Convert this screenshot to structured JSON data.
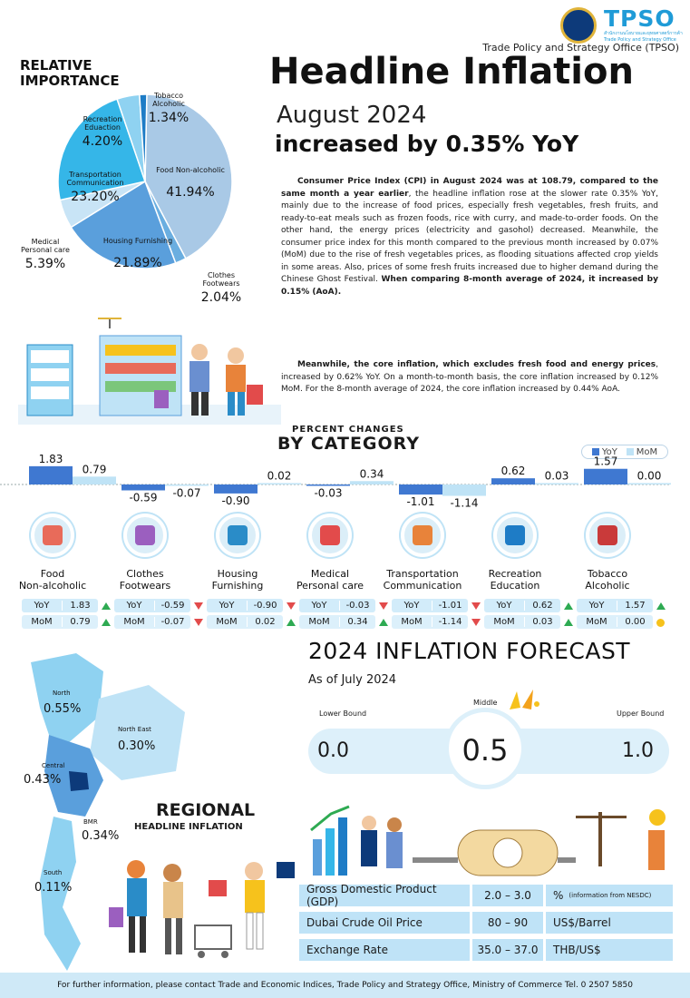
{
  "header": {
    "org": "Trade Policy and Strategy Office (TPSO)",
    "logo_text": "TPSO",
    "logo_sub": "สำนักงานนโยบายและยุทธศาสตร์การค้า Trade Policy and Strategy Office",
    "title": "Headline Inflation",
    "period": "August 2024",
    "subtitle": "increased by 0.35% YoY"
  },
  "summary": {
    "p1_bold": "Consumer Price Index (CPI) in August 2024 was at 108.79, compared to the same month a year earlier",
    "p1_text": ", the headline inflation rose at the slower rate 0.35% YoY, mainly due to the increase of food prices, especially fresh vegetables, fresh fruits, and ready-to-eat meals such as frozen foods, rice with curry, and made-to-order foods. On the other hand, the energy prices (electricity and gasohol) decreased. Meanwhile, the consumer price index for this month compared to the previous month increased by 0.07% (MoM) due to the rise of fresh vegetables prices, as flooding situations affected crop yields in some areas. Also, prices of some fresh fruits increased due to higher demand during the Chinese Ghost Festival. ",
    "p1_bold2": "When comparing 8-month average of 2024, it increased by 0.15% (AoA).",
    "p2_bold": "Meanwhile, the core inflation, which excludes fresh food and energy prices",
    "p2_text": ", increased by 0.62% YoY. On a month-to-month basis, the core inflation increased by 0.12% MoM.    For the 8-month average of 2024, the core inflation increased by 0.44% AoA."
  },
  "chart_data": [
    {
      "type": "pie",
      "title": "RELATIVE IMPORTANCE",
      "slices": [
        {
          "label": "Food Non-alcoholic",
          "value": 41.94,
          "display": "41.94%",
          "color": "#a9c9e6"
        },
        {
          "label": "Clothes Footwears",
          "value": 2.04,
          "display": "2.04%",
          "color": "#6aaee0"
        },
        {
          "label": "Housing Furnishing",
          "value": 21.89,
          "display": "21.89%",
          "color": "#5a9fdc"
        },
        {
          "label": "Medical Personal care",
          "value": 5.39,
          "display": "5.39%",
          "color": "#c8e4f6"
        },
        {
          "label": "Transportation Communication",
          "value": 23.2,
          "display": "23.20%",
          "color": "#35b6e8"
        },
        {
          "label": "Recreation Eduaction",
          "value": 4.2,
          "display": "4.20%",
          "color": "#8fd2f1"
        },
        {
          "label": "Tobacco Alcoholic",
          "value": 1.34,
          "display": "1.34%",
          "color": "#1e7cc6"
        }
      ]
    },
    {
      "type": "bar",
      "title": "BY CATEGORY",
      "subtitle": "PERCENT CHANGES",
      "categories": [
        "Food Non-alcoholic",
        "Clothes Footwears",
        "Housing Furnishing",
        "Medical Personal care",
        "Transportation Communication",
        "Recreation Education",
        "Tobacco Alcoholic"
      ],
      "series": [
        {
          "name": "YoY",
          "values": [
            1.83,
            -0.59,
            -0.9,
            -0.03,
            -1.01,
            0.62,
            1.57
          ],
          "display": [
            "1.83",
            "-0.59",
            "-0.90",
            "-0.03",
            "-1.01",
            "0.62",
            "1.57"
          ],
          "color": "#3f78d1"
        },
        {
          "name": "MoM",
          "values": [
            0.79,
            -0.07,
            0.02,
            0.34,
            -1.14,
            0.03,
            0.0
          ],
          "display": [
            "0.79",
            "-0.07",
            "0.02",
            "0.34",
            "-1.14",
            "0.03",
            "0.00"
          ],
          "color": "#bfe3f6"
        }
      ]
    }
  ],
  "category_table": {
    "yoy_label": "YoY",
    "mom_label": "MoM",
    "names": [
      [
        "Food",
        "Non-alcoholic"
      ],
      [
        "Clothes",
        "Footwears"
      ],
      [
        "Housing",
        "Furnishing"
      ],
      [
        "Medical",
        "Personal care"
      ],
      [
        "Transportation",
        "Communication"
      ],
      [
        "Recreation",
        "Education"
      ],
      [
        "Tobacco",
        "Alcoholic"
      ]
    ],
    "yoy_display": [
      "1.83",
      "-0.59",
      "-0.90",
      "-0.03",
      "-1.01",
      "0.62",
      "1.57"
    ],
    "mom_display": [
      "0.79",
      "-0.07",
      "0.02",
      "0.34",
      "-1.14",
      "0.03",
      "0.00"
    ],
    "yoy_dir": [
      "up",
      "down",
      "down",
      "down",
      "down",
      "up",
      "up"
    ],
    "mom_dir": [
      "up",
      "down",
      "up",
      "up",
      "down",
      "up",
      "flat"
    ]
  },
  "forecast": {
    "title": "2024 INFLATION FORECAST",
    "as_of": "As of July 2024",
    "lower_label": "Lower Bound",
    "middle_label": "Middle",
    "upper_label": "Upper Bound",
    "lower": "0.0",
    "middle": "0.5",
    "upper": "1.0"
  },
  "regional": {
    "title": "REGIONAL",
    "subtitle": "HEADLINE INFLATION",
    "regions": [
      {
        "name": "North",
        "value": "0.55%"
      },
      {
        "name": "North East",
        "value": "0.30%"
      },
      {
        "name": "Central",
        "value": "0.43%"
      },
      {
        "name": "BMR",
        "value": "0.34%"
      },
      {
        "name": "South",
        "value": "0.11%"
      }
    ]
  },
  "assumptions": [
    {
      "name": "Gross Domestic Product (GDP)",
      "range": "2.0 – 3.0",
      "unit": "%",
      "note": "(information from NESDC)"
    },
    {
      "name": "Dubai Crude Oil Price",
      "range": "80 – 90",
      "unit": "US$/Barrel",
      "note": ""
    },
    {
      "name": "Exchange Rate",
      "range": "35.0 – 37.0",
      "unit": "THB/US$",
      "note": ""
    }
  ],
  "footer": "For further information, please contact Trade and Economic Indices, Trade Policy and Strategy Office, Ministry of Commerce Tel. 0 2507 5850"
}
